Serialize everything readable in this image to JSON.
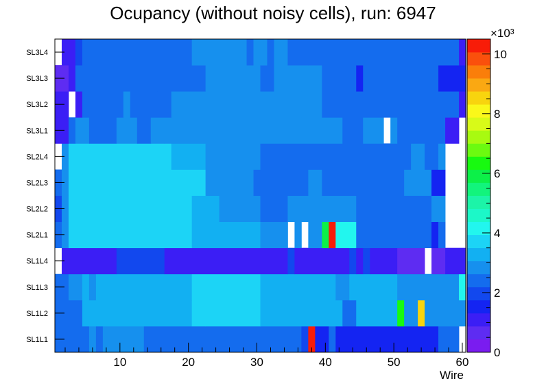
{
  "chart_data": {
    "type": "heatmap",
    "title": "Ocupancy (without noisy cells), run: 6947",
    "xlabel": "Wire",
    "ylabel": "",
    "x_range": [
      0.5,
      60.5
    ],
    "x_ticks": [
      "10",
      "20",
      "30",
      "40",
      "50",
      "60"
    ],
    "y_categories": [
      "SL1L1",
      "SL1L2",
      "SL1L3",
      "SL1L4",
      "SL2L1",
      "SL2L2",
      "SL2L3",
      "SL2L4",
      "SL3L1",
      "SL3L2",
      "SL3L3",
      "SL3L4"
    ],
    "z_range": [
      0,
      10.5
    ],
    "z_multiplier": "×10³",
    "colorbar_ticks": [
      "0",
      "2",
      "4",
      "6",
      "8",
      "10"
    ],
    "rows": [
      {
        "layer": "SL1L1",
        "segments": [
          {
            "from": 1,
            "to": 3,
            "z": 2.4
          },
          {
            "from": 4,
            "to": 4,
            "z": 2.6
          },
          {
            "from": 5,
            "to": 5,
            "z": 2.3
          },
          {
            "from": 6,
            "to": 6,
            "z": 2.9
          },
          {
            "from": 7,
            "to": 7,
            "z": 2.4
          },
          {
            "from": 8,
            "to": 13,
            "z": 2.9
          },
          {
            "from": 14,
            "to": 36,
            "z": 2.3
          },
          {
            "from": 37,
            "to": 37,
            "z": 1.8
          },
          {
            "from": 38,
            "to": 38,
            "z": 10.2
          },
          {
            "from": 39,
            "to": 40,
            "z": 1.5
          },
          {
            "from": 41,
            "to": 41,
            "z": 2.3
          },
          {
            "from": 42,
            "to": 56,
            "z": 1.5
          },
          {
            "from": 57,
            "to": 59,
            "z": 2.5
          },
          {
            "from": 60,
            "to": 60,
            "z": null
          }
        ]
      },
      {
        "layer": "SL1L2",
        "segments": [
          {
            "from": 1,
            "to": 2,
            "z": 2.4
          },
          {
            "from": 3,
            "to": 4,
            "z": 2.6
          },
          {
            "from": 5,
            "to": 20,
            "z": 3.2
          },
          {
            "from": 21,
            "to": 22,
            "z": 3.7
          },
          {
            "from": 23,
            "to": 30,
            "z": 3.7
          },
          {
            "from": 31,
            "to": 42,
            "z": 3.2
          },
          {
            "from": 43,
            "to": 44,
            "z": 2.6
          },
          {
            "from": 45,
            "to": 50,
            "z": 3.2
          },
          {
            "from": 51,
            "to": 51,
            "z": 6.2
          },
          {
            "from": 52,
            "to": 53,
            "z": 2.7
          },
          {
            "from": 54,
            "to": 54,
            "z": 8.5
          },
          {
            "from": 55,
            "to": 60,
            "z": 2.7
          }
        ]
      },
      {
        "layer": "SL1L3",
        "segments": [
          {
            "from": 1,
            "to": 2,
            "z": 2.4
          },
          {
            "from": 3,
            "to": 4,
            "z": 2.8
          },
          {
            "from": 5,
            "to": 5,
            "z": 3.2
          },
          {
            "from": 6,
            "to": 6,
            "z": 2.8
          },
          {
            "from": 7,
            "to": 20,
            "z": 3.2
          },
          {
            "from": 21,
            "to": 30,
            "z": 3.8
          },
          {
            "from": 31,
            "to": 41,
            "z": 3.2
          },
          {
            "from": 42,
            "to": 43,
            "z": 2.8
          },
          {
            "from": 44,
            "to": 47,
            "z": 3.2
          },
          {
            "from": 48,
            "to": 50,
            "z": 3.2
          },
          {
            "from": 51,
            "to": 59,
            "z": 2.7
          },
          {
            "from": 60,
            "to": 60,
            "z": 4.2
          }
        ]
      },
      {
        "layer": "SL1L4",
        "segments": [
          {
            "from": 1,
            "to": 1,
            "z": null
          },
          {
            "from": 2,
            "to": 9,
            "z": 1.3
          },
          {
            "from": 10,
            "to": 16,
            "z": 1.8
          },
          {
            "from": 17,
            "to": 34,
            "z": 1.3
          },
          {
            "from": 35,
            "to": 35,
            "z": 1.8
          },
          {
            "from": 36,
            "to": 43,
            "z": 1.3
          },
          {
            "from": 44,
            "to": 44,
            "z": 1.8
          },
          {
            "from": 45,
            "to": 45,
            "z": 1.3
          },
          {
            "from": 46,
            "to": 46,
            "z": 1.8
          },
          {
            "from": 47,
            "to": 50,
            "z": 1.3
          },
          {
            "from": 51,
            "to": 54,
            "z": 0.6
          },
          {
            "from": 55,
            "to": 55,
            "z": null
          },
          {
            "from": 56,
            "to": 57,
            "z": 0.6
          },
          {
            "from": 58,
            "to": 60,
            "z": 1.3
          }
        ]
      },
      {
        "layer": "SL2L1",
        "segments": [
          {
            "from": 1,
            "to": 1,
            "z": 2.4
          },
          {
            "from": 2,
            "to": 2,
            "z": 2.8
          },
          {
            "from": 3,
            "to": 6,
            "z": 3.8
          },
          {
            "from": 7,
            "to": 8,
            "z": 3.5
          },
          {
            "from": 9,
            "to": 20,
            "z": 3.8
          },
          {
            "from": 21,
            "to": 30,
            "z": 3.2
          },
          {
            "from": 31,
            "to": 34,
            "z": 2.8
          },
          {
            "from": 35,
            "to": 35,
            "z": null
          },
          {
            "from": 36,
            "to": 36,
            "z": 2.8
          },
          {
            "from": 37,
            "to": 37,
            "z": null
          },
          {
            "from": 38,
            "to": 39,
            "z": 2.8
          },
          {
            "from": 40,
            "to": 40,
            "z": 6.0
          },
          {
            "from": 41,
            "to": 41,
            "z": 10.2
          },
          {
            "from": 42,
            "to": 44,
            "z": 4.2
          },
          {
            "from": 45,
            "to": 55,
            "z": 2.3
          },
          {
            "from": 56,
            "to": 56,
            "z": 1.5
          },
          {
            "from": 57,
            "to": 57,
            "z": 2.3
          },
          {
            "from": 58,
            "to": 60,
            "z": null
          }
        ]
      },
      {
        "layer": "SL2L2",
        "segments": [
          {
            "from": 1,
            "to": 1,
            "z": 2.0
          },
          {
            "from": 2,
            "to": 2,
            "z": 2.8
          },
          {
            "from": 3,
            "to": 7,
            "z": 3.8
          },
          {
            "from": 8,
            "to": 8,
            "z": 3.5
          },
          {
            "from": 9,
            "to": 20,
            "z": 3.8
          },
          {
            "from": 21,
            "to": 24,
            "z": 3.2
          },
          {
            "from": 25,
            "to": 30,
            "z": 2.8
          },
          {
            "from": 31,
            "to": 34,
            "z": 2.3
          },
          {
            "from": 35,
            "to": 36,
            "z": 2.8
          },
          {
            "from": 37,
            "to": 44,
            "z": 2.8
          },
          {
            "from": 45,
            "to": 45,
            "z": 2.4
          },
          {
            "from": 46,
            "to": 55,
            "z": 2.3
          },
          {
            "from": 56,
            "to": 57,
            "z": 2.7
          },
          {
            "from": 58,
            "to": 60,
            "z": null
          }
        ]
      },
      {
        "layer": "SL2L3",
        "segments": [
          {
            "from": 1,
            "to": 1,
            "z": 2.4
          },
          {
            "from": 2,
            "to": 2,
            "z": 2.8
          },
          {
            "from": 3,
            "to": 6,
            "z": 3.8
          },
          {
            "from": 7,
            "to": 8,
            "z": 3.5
          },
          {
            "from": 9,
            "to": 18,
            "z": 3.8
          },
          {
            "from": 19,
            "to": 22,
            "z": 3.5
          },
          {
            "from": 23,
            "to": 29,
            "z": 2.8
          },
          {
            "from": 30,
            "to": 37,
            "z": 2.3
          },
          {
            "from": 38,
            "to": 39,
            "z": 2.8
          },
          {
            "from": 40,
            "to": 51,
            "z": 2.3
          },
          {
            "from": 52,
            "to": 55,
            "z": 2.8
          },
          {
            "from": 56,
            "to": 57,
            "z": 1.5
          },
          {
            "from": 58,
            "to": 60,
            "z": null
          }
        ]
      },
      {
        "layer": "SL2L4",
        "segments": [
          {
            "from": 1,
            "to": 1,
            "z": null
          },
          {
            "from": 2,
            "to": 2,
            "z": 2.8
          },
          {
            "from": 3,
            "to": 6,
            "z": 3.8
          },
          {
            "from": 7,
            "to": 10,
            "z": 3.5
          },
          {
            "from": 11,
            "to": 15,
            "z": 3.8
          },
          {
            "from": 16,
            "to": 17,
            "z": 3.5
          },
          {
            "from": 18,
            "to": 22,
            "z": 3.2
          },
          {
            "from": 23,
            "to": 30,
            "z": 2.8
          },
          {
            "from": 31,
            "to": 52,
            "z": 2.3
          },
          {
            "from": 53,
            "to": 54,
            "z": 2.8
          },
          {
            "from": 55,
            "to": 56,
            "z": 2.3
          },
          {
            "from": 57,
            "to": 57,
            "z": 2.7
          },
          {
            "from": 58,
            "to": 60,
            "z": null
          }
        ]
      },
      {
        "layer": "SL3L1",
        "segments": [
          {
            "from": 1,
            "to": 2,
            "z": 1.3
          },
          {
            "from": 3,
            "to": 3,
            "z": 2.3
          },
          {
            "from": 4,
            "to": 5,
            "z": 2.8
          },
          {
            "from": 6,
            "to": 9,
            "z": 2.3
          },
          {
            "from": 10,
            "to": 12,
            "z": 2.8
          },
          {
            "from": 13,
            "to": 14,
            "z": 2.3
          },
          {
            "from": 15,
            "to": 16,
            "z": 2.8
          },
          {
            "from": 17,
            "to": 42,
            "z": 2.8
          },
          {
            "from": 43,
            "to": 45,
            "z": 2.3
          },
          {
            "from": 46,
            "to": 48,
            "z": 2.8
          },
          {
            "from": 49,
            "to": 49,
            "z": null
          },
          {
            "from": 50,
            "to": 50,
            "z": 2.8
          },
          {
            "from": 51,
            "to": 57,
            "z": 2.3
          },
          {
            "from": 58,
            "to": 59,
            "z": 1.3
          },
          {
            "from": 60,
            "to": 60,
            "z": null
          }
        ]
      },
      {
        "layer": "SL3L2",
        "segments": [
          {
            "from": 1,
            "to": 2,
            "z": 1.0
          },
          {
            "from": 3,
            "to": 3,
            "z": null
          },
          {
            "from": 4,
            "to": 4,
            "z": 1.3
          },
          {
            "from": 5,
            "to": 10,
            "z": 2.3
          },
          {
            "from": 11,
            "to": 11,
            "z": 2.8
          },
          {
            "from": 12,
            "to": 17,
            "z": 2.3
          },
          {
            "from": 18,
            "to": 36,
            "z": 2.8
          },
          {
            "from": 37,
            "to": 39,
            "z": 2.8
          },
          {
            "from": 40,
            "to": 59,
            "z": 2.3
          },
          {
            "from": 60,
            "to": 60,
            "z": 1.3
          }
        ]
      },
      {
        "layer": "SL3L3",
        "segments": [
          {
            "from": 1,
            "to": 2,
            "z": 0.8
          },
          {
            "from": 3,
            "to": 3,
            "z": 1.3
          },
          {
            "from": 4,
            "to": 15,
            "z": 2.3
          },
          {
            "from": 16,
            "to": 22,
            "z": 2.3
          },
          {
            "from": 23,
            "to": 30,
            "z": 2.8
          },
          {
            "from": 31,
            "to": 32,
            "z": 2.3
          },
          {
            "from": 33,
            "to": 39,
            "z": 2.8
          },
          {
            "from": 40,
            "to": 44,
            "z": 2.3
          },
          {
            "from": 45,
            "to": 45,
            "z": 1.6
          },
          {
            "from": 46,
            "to": 56,
            "z": 2.3
          },
          {
            "from": 57,
            "to": 60,
            "z": 1.6
          }
        ]
      },
      {
        "layer": "SL3L4",
        "segments": [
          {
            "from": 1,
            "to": 1,
            "z": null
          },
          {
            "from": 2,
            "to": 3,
            "z": 1.3
          },
          {
            "from": 4,
            "to": 4,
            "z": 1.8
          },
          {
            "from": 5,
            "to": 20,
            "z": 2.3
          },
          {
            "from": 21,
            "to": 28,
            "z": 2.8
          },
          {
            "from": 29,
            "to": 29,
            "z": 2.3
          },
          {
            "from": 30,
            "to": 31,
            "z": 2.8
          },
          {
            "from": 32,
            "to": 32,
            "z": 2.3
          },
          {
            "from": 33,
            "to": 34,
            "z": 2.8
          },
          {
            "from": 35,
            "to": 37,
            "z": 2.3
          },
          {
            "from": 38,
            "to": 59,
            "z": 2.3
          },
          {
            "from": 60,
            "to": 60,
            "z": 1.3
          }
        ]
      }
    ]
  }
}
